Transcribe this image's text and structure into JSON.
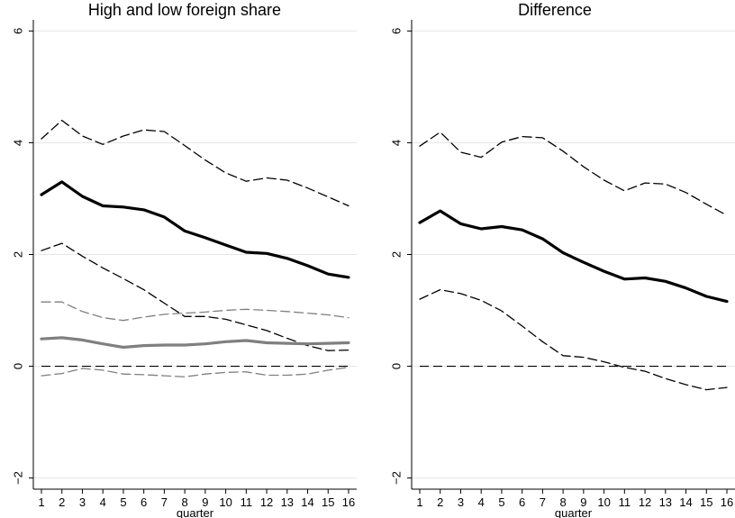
{
  "chart_data": [
    {
      "type": "line",
      "title": "High and low foreign share",
      "xlabel": "quarter",
      "ylabel": "",
      "x": [
        1,
        2,
        3,
        4,
        5,
        6,
        7,
        8,
        9,
        10,
        11,
        12,
        13,
        14,
        15,
        16
      ],
      "ylim": [
        -2.2,
        6.2
      ],
      "yticks": [
        -2,
        0,
        2,
        4,
        6
      ],
      "grid": "horizontal",
      "reference_line": 0,
      "series": [
        {
          "style": "solid-thick",
          "color": "#000000",
          "values": [
            3.07,
            3.3,
            3.04,
            2.87,
            2.85,
            2.8,
            2.67,
            2.42,
            2.3,
            2.17,
            2.04,
            2.02,
            1.93,
            1.8,
            1.65,
            1.59
          ]
        },
        {
          "style": "dashed",
          "color": "#000000",
          "values": [
            4.07,
            4.4,
            4.12,
            3.97,
            4.12,
            4.23,
            4.2,
            3.95,
            3.69,
            3.46,
            3.31,
            3.37,
            3.33,
            3.19,
            3.03,
            2.87
          ]
        },
        {
          "style": "dashed",
          "color": "#000000",
          "values": [
            2.07,
            2.2,
            1.97,
            1.76,
            1.57,
            1.37,
            1.13,
            0.89,
            0.89,
            0.84,
            0.74,
            0.64,
            0.5,
            0.37,
            0.28,
            0.29
          ]
        },
        {
          "style": "solid-thick",
          "color": "#7f7f7f",
          "values": [
            0.49,
            0.51,
            0.47,
            0.4,
            0.34,
            0.37,
            0.38,
            0.38,
            0.4,
            0.44,
            0.46,
            0.42,
            0.41,
            0.4,
            0.41,
            0.42
          ]
        },
        {
          "style": "dashed",
          "color": "#7f7f7f",
          "values": [
            1.15,
            1.15,
            0.98,
            0.87,
            0.82,
            0.88,
            0.93,
            0.95,
            0.97,
            1.0,
            1.02,
            1.0,
            0.98,
            0.95,
            0.92,
            0.87
          ]
        },
        {
          "style": "dashed",
          "color": "#7f7f7f",
          "values": [
            -0.17,
            -0.13,
            -0.04,
            -0.07,
            -0.14,
            -0.15,
            -0.17,
            -0.19,
            -0.14,
            -0.11,
            -0.1,
            -0.16,
            -0.16,
            -0.14,
            -0.07,
            -0.02
          ]
        }
      ]
    },
    {
      "type": "line",
      "title": "Difference",
      "xlabel": "quarter",
      "ylabel": "",
      "x": [
        1,
        2,
        3,
        4,
        5,
        6,
        7,
        8,
        9,
        10,
        11,
        12,
        13,
        14,
        15,
        16
      ],
      "ylim": [
        -2.2,
        6.2
      ],
      "yticks": [
        -2,
        0,
        2,
        4,
        6
      ],
      "grid": "horizontal",
      "reference_line": 0,
      "series": [
        {
          "style": "solid-thick",
          "color": "#000000",
          "values": [
            2.57,
            2.78,
            2.55,
            2.46,
            2.5,
            2.44,
            2.28,
            2.03,
            1.86,
            1.7,
            1.56,
            1.58,
            1.52,
            1.4,
            1.25,
            1.16
          ]
        },
        {
          "style": "dashed",
          "color": "#000000",
          "values": [
            3.94,
            4.19,
            3.83,
            3.74,
            4.01,
            4.11,
            4.09,
            3.85,
            3.57,
            3.33,
            3.14,
            3.28,
            3.26,
            3.11,
            2.9,
            2.7
          ]
        },
        {
          "style": "dashed",
          "color": "#000000",
          "values": [
            1.2,
            1.37,
            1.3,
            1.18,
            0.99,
            0.72,
            0.44,
            0.19,
            0.16,
            0.08,
            -0.02,
            -0.09,
            -0.22,
            -0.33,
            -0.42,
            -0.38
          ]
        }
      ]
    }
  ]
}
